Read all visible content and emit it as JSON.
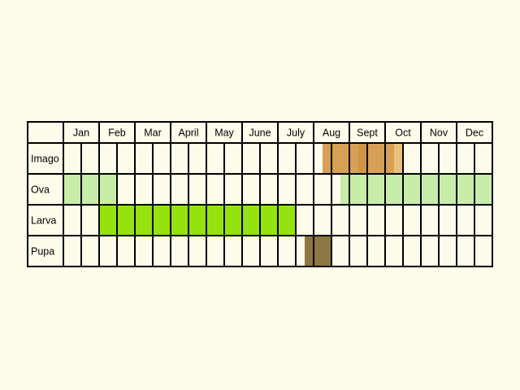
{
  "chart_data": {
    "type": "table",
    "months": [
      "Jan",
      "Feb",
      "Mar",
      "April",
      "May",
      "June",
      "July",
      "Aug",
      "Sept",
      "Oct",
      "Nov",
      "Dec"
    ],
    "stages": [
      {
        "label": "Imago",
        "active_periods": [
          {
            "start_month": 7.25,
            "end_month": 9.25,
            "color": "#D89F56",
            "strong_color": "#C98A3C"
          },
          {
            "start_month": 9.25,
            "end_month": 9.5,
            "color": "#E7C27C",
            "strong_color": "#E7C27C"
          }
        ]
      },
      {
        "label": "Ova",
        "active_periods": [
          {
            "start_month": 0,
            "end_month": 1.5,
            "color": "#C8EDA9",
            "strong_color": "#C8EDA9"
          },
          {
            "start_month": 7.75,
            "end_month": 12,
            "color": "#C8EDA9",
            "strong_color": "#C8EDA9"
          }
        ]
      },
      {
        "label": "Larva",
        "active_periods": [
          {
            "start_month": 1,
            "end_month": 6.5,
            "color": "#94E20E",
            "strong_color": "#94E20E"
          }
        ]
      },
      {
        "label": "Pupa",
        "active_periods": [
          {
            "start_month": 6.75,
            "end_month": 7.5,
            "color": "#8D7744",
            "strong_color": "#8D7744"
          }
        ]
      }
    ],
    "cells_per_month": 2,
    "grid_color": "#000000",
    "cell_color": "#FDFCEB"
  }
}
